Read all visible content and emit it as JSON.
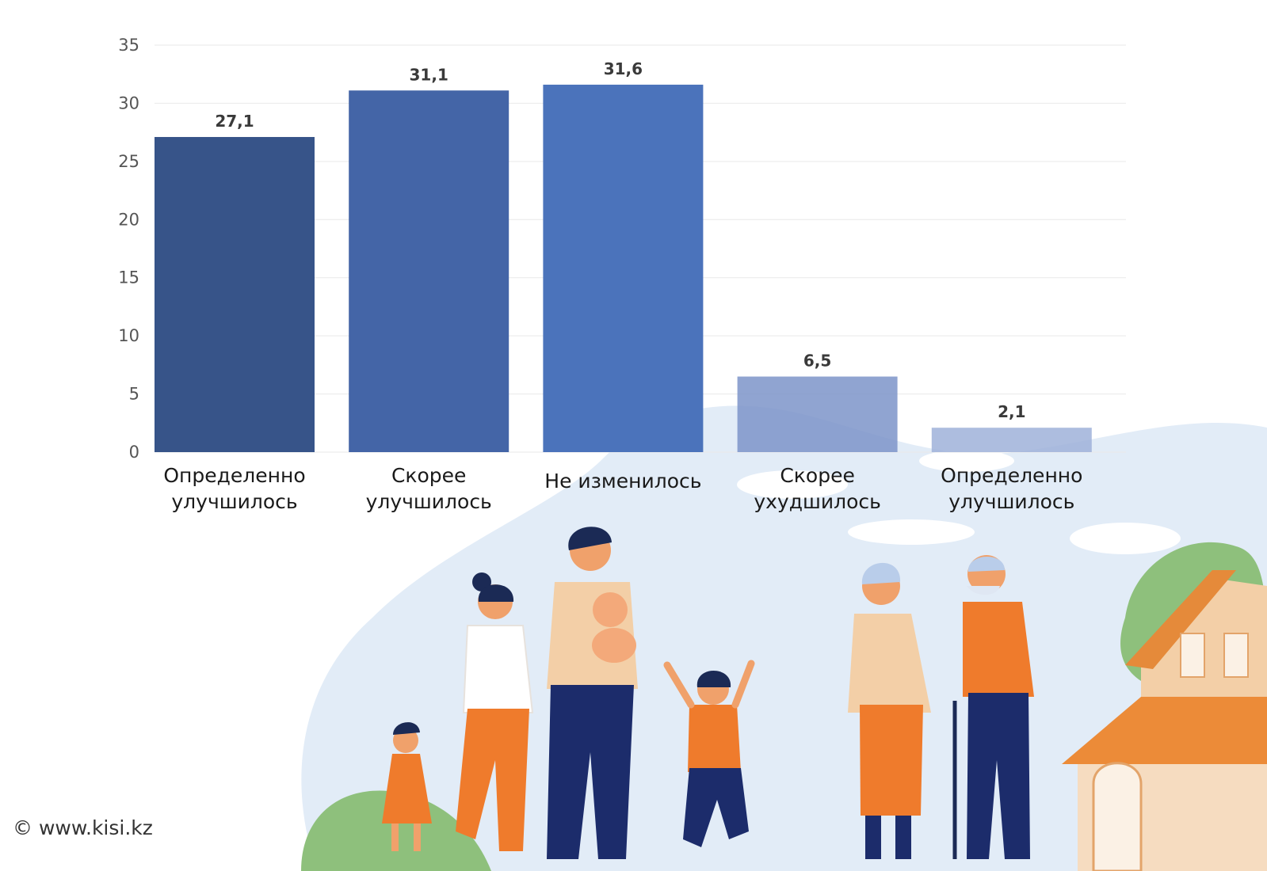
{
  "chart_data": {
    "type": "bar",
    "categories": [
      [
        "Определенно",
        "улучшилось"
      ],
      [
        "Скорее",
        "улучшилось"
      ],
      [
        "Не изменилось"
      ],
      [
        "Скорее",
        "ухудшилось"
      ],
      [
        "Определенно",
        "улучшилось"
      ]
    ],
    "values": [
      27.1,
      31.1,
      31.6,
      6.5,
      2.1
    ],
    "value_labels": [
      "27,1",
      "31,1",
      "31,6",
      "6,5",
      "2,1"
    ],
    "ylim": [
      0,
      35
    ],
    "yticks": [
      "0",
      "5",
      "10",
      "15",
      "20",
      "25",
      "30",
      "35"
    ],
    "grid": true,
    "bar_colors": [
      "#375489",
      "#4465a7",
      "#4b73bb",
      "#7c94c9",
      "#9fb1d9"
    ]
  },
  "footer": {
    "copyright": "© www.kisi.kz"
  },
  "illustration": {
    "subject": "family-illustration"
  }
}
